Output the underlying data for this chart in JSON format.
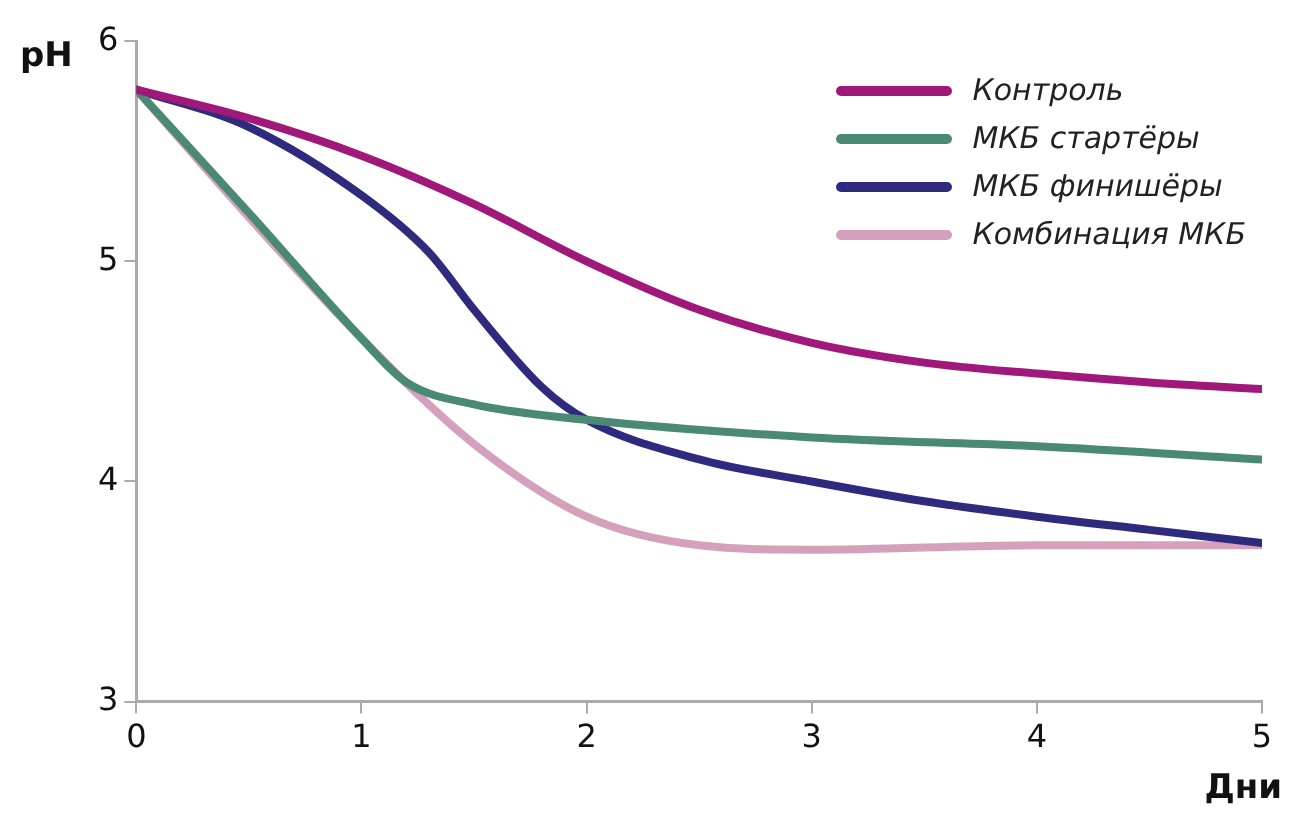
{
  "chart_data": {
    "type": "line",
    "xlabel": "Дни",
    "ylabel": "pH",
    "xlim": [
      0,
      5
    ],
    "xticks": [
      0,
      1,
      2,
      3,
      4,
      5
    ],
    "ylim": [
      3,
      6
    ],
    "yticks": [
      3,
      4,
      5,
      6
    ],
    "grid": false,
    "legend": "top right",
    "marker": "none",
    "line_style": "solid",
    "series": [
      {
        "name": "Контроль",
        "color": "#a0197a",
        "x": [
          0,
          0.5,
          1,
          1.5,
          2,
          2.5,
          3,
          3.5,
          4,
          4.5,
          5
        ],
        "values": [
          5.78,
          5.65,
          5.48,
          5.26,
          5.0,
          4.78,
          4.63,
          4.54,
          4.49,
          4.45,
          4.42
        ]
      },
      {
        "name": "МКБ стартёры",
        "color": "#4a8a74",
        "x": [
          0,
          0.5,
          1,
          1.2,
          1.5,
          2,
          3,
          4,
          5
        ],
        "values": [
          5.78,
          5.22,
          4.65,
          4.45,
          4.35,
          4.28,
          4.2,
          4.16,
          4.1
        ]
      },
      {
        "name": "МКБ финишёры",
        "color": "#2e2a7e",
        "x": [
          0,
          0.5,
          1,
          1.3,
          1.5,
          1.8,
          2,
          2.5,
          3,
          3.5,
          4,
          4.5,
          5
        ],
        "values": [
          5.78,
          5.61,
          5.3,
          5.04,
          4.78,
          4.43,
          4.28,
          4.1,
          4.0,
          3.91,
          3.84,
          3.78,
          3.72
        ]
      },
      {
        "name": "Комбинация МКБ",
        "color": "#d4a0bb",
        "x": [
          0,
          0.5,
          1,
          1.5,
          2,
          2.5,
          3,
          4,
          5
        ],
        "values": [
          5.78,
          5.2,
          4.65,
          4.17,
          3.84,
          3.71,
          3.69,
          3.71,
          3.71
        ]
      }
    ]
  }
}
